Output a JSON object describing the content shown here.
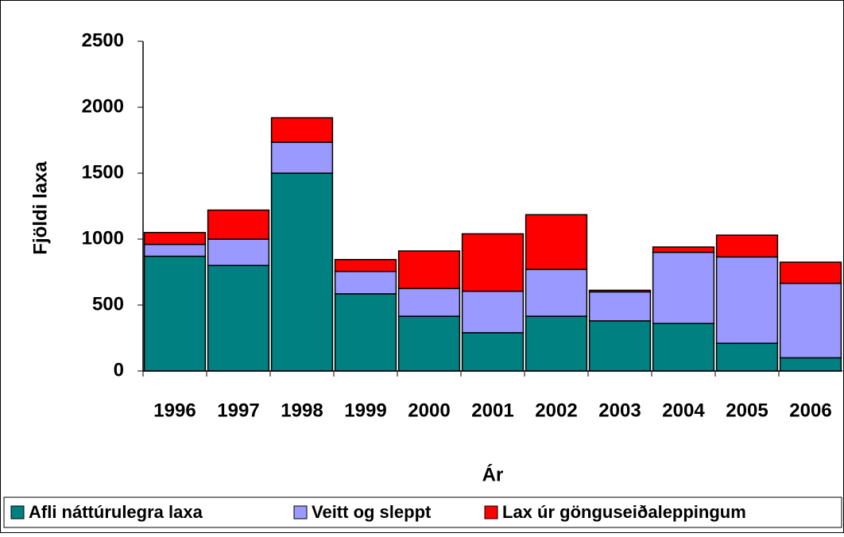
{
  "chart_data": {
    "type": "stacked_bar",
    "y_label": "Fjöldi laxa",
    "x_label": "Ár",
    "categories": [
      "1996",
      "1997",
      "1998",
      "1999",
      "2000",
      "2001",
      "2002",
      "2003",
      "2004",
      "2005",
      "2006"
    ],
    "series": [
      {
        "name": "Afli náttúrulegra laxa",
        "color": "#008080",
        "values": [
          870,
          800,
          1500,
          585,
          415,
          290,
          415,
          380,
          360,
          210,
          100
        ]
      },
      {
        "name": "Veitt og sleppt",
        "color": "#9999ff",
        "values": [
          90,
          200,
          235,
          170,
          210,
          315,
          355,
          220,
          540,
          655,
          565
        ]
      },
      {
        "name": "Lax úr gönguseiðaleppingum",
        "color": "#ff0000",
        "values": [
          90,
          220,
          185,
          90,
          285,
          435,
          415,
          12,
          40,
          165,
          160
        ]
      }
    ],
    "ylim": [
      0,
      2500
    ],
    "yticks": [
      0,
      500,
      1000,
      1500,
      2000,
      2500
    ],
    "legend": "bottom"
  }
}
